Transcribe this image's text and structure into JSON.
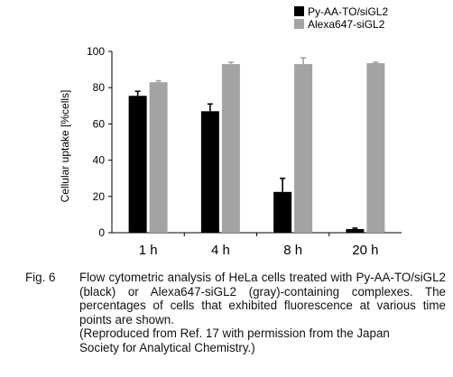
{
  "chart_data": {
    "type": "bar",
    "ylabel": "Cellular uptake [%cells]",
    "xlabel": "",
    "ylim": [
      0,
      100
    ],
    "yticks": [
      0,
      20,
      40,
      60,
      80,
      100
    ],
    "categories": [
      "1 h",
      "4 h",
      "8 h",
      "20 h"
    ],
    "series": [
      {
        "name": "Py-AA-TO/siGL2",
        "color": "#000000",
        "values": [
          75.5,
          67,
          22.5,
          2
        ],
        "errors": [
          2.5,
          4,
          7.5,
          0.5
        ]
      },
      {
        "name": "Alexa647-siGL2",
        "color": "#a3a3a3",
        "values": [
          83,
          93,
          93,
          93.5
        ],
        "errors": [
          0.8,
          1,
          3.5,
          0.5
        ]
      }
    ],
    "legend": "top-right",
    "grid": false
  },
  "caption": {
    "label": "Fig. 6",
    "text": "Flow cytometric analysis of HeLa cells treated with Py-AA-TO/siGL2 (black) or Alexa647-siGL2 (gray)-containing complexes. The percentages of cells that exhibited fluorescence at various time points are shown.",
    "note_line1": "(Reproduced from Ref. 17 with permission from the Japan",
    "note_line2": "Society for Analytical Chemistry.)"
  }
}
